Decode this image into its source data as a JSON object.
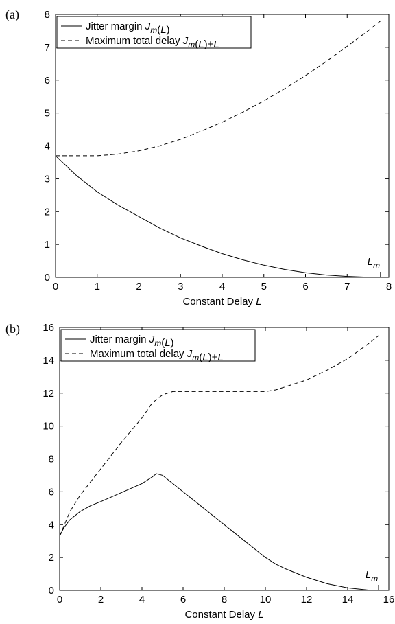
{
  "chart_data": [
    {
      "type": "line",
      "panel_label": "(a)",
      "xlabel": "Constant Delay",
      "xlabel_var": "L",
      "xlim": [
        0,
        8
      ],
      "ylim": [
        0,
        8
      ],
      "xticks": [
        "0",
        "1",
        "2",
        "3",
        "4",
        "5",
        "6",
        "7",
        "8"
      ],
      "yticks": [
        "0",
        "1",
        "2",
        "3",
        "4",
        "5",
        "6",
        "7",
        "8"
      ],
      "legend_placement": "top-left",
      "marker_label": "L",
      "marker_sub": "m",
      "marker_x": 7.8,
      "series": [
        {
          "name": "Jitter margin J_m(L)",
          "legend_text": "Jitter margin ",
          "legend_math": "J_m(L)",
          "style": "solid",
          "x": [
            0,
            0.5,
            1,
            1.5,
            2,
            2.5,
            3,
            3.5,
            4,
            4.5,
            5,
            5.5,
            6,
            6.5,
            7,
            7.5,
            7.8
          ],
          "y": [
            3.7,
            3.1,
            2.6,
            2.2,
            1.85,
            1.5,
            1.2,
            0.95,
            0.72,
            0.53,
            0.37,
            0.24,
            0.14,
            0.07,
            0.03,
            0.005,
            0
          ]
        },
        {
          "name": "Maximum total delay J_m(L)+L",
          "legend_text": "Maximum total delay ",
          "legend_math": "J_m(L)+L",
          "style": "dashed",
          "x": [
            0,
            0.5,
            1,
            1.5,
            2,
            2.5,
            3,
            3.5,
            4,
            4.5,
            5,
            5.5,
            6,
            6.5,
            7,
            7.5,
            7.8
          ],
          "y": [
            3.7,
            3.7,
            3.7,
            3.75,
            3.85,
            4.0,
            4.2,
            4.45,
            4.72,
            5.03,
            5.37,
            5.74,
            6.14,
            6.57,
            7.03,
            7.5,
            7.8
          ]
        }
      ]
    },
    {
      "type": "line",
      "panel_label": "(b)",
      "xlabel": "Constant Delay",
      "xlabel_var": "L",
      "xlim": [
        0,
        16
      ],
      "ylim": [
        0,
        16
      ],
      "xticks": [
        "0",
        "2",
        "4",
        "6",
        "8",
        "10",
        "12",
        "14",
        "16"
      ],
      "yticks": [
        "0",
        "2",
        "4",
        "6",
        "8",
        "10",
        "12",
        "14",
        "16"
      ],
      "legend_placement": "top-left",
      "marker_label": "L",
      "marker_sub": "m",
      "marker_x": 15.5,
      "series": [
        {
          "name": "Jitter margin J_m(L)",
          "legend_text": "Jitter margin ",
          "legend_math": "J_m(L)",
          "style": "solid",
          "x": [
            0,
            0.2,
            0.5,
            1,
            1.5,
            2,
            3,
            4,
            4.5,
            4.7,
            5,
            6,
            7,
            8,
            9,
            10,
            10.5,
            11,
            12,
            13,
            14,
            15,
            15.5
          ],
          "y": [
            3.3,
            3.8,
            4.3,
            4.8,
            5.15,
            5.4,
            5.95,
            6.5,
            6.9,
            7.1,
            7.0,
            6.0,
            5.0,
            4.0,
            3.0,
            2.0,
            1.6,
            1.3,
            0.8,
            0.4,
            0.15,
            0.02,
            0
          ]
        },
        {
          "name": "Maximum total delay J_m(L)+L",
          "legend_text": "Maximum total delay ",
          "legend_math": "J_m(L)+L",
          "style": "dashed",
          "x": [
            0,
            0.5,
            1,
            2,
            3,
            4,
            4.5,
            5,
            5.5,
            6,
            7,
            8,
            9,
            10,
            10.5,
            11,
            12,
            13,
            14,
            15,
            15.5
          ],
          "y": [
            3.3,
            4.8,
            5.8,
            7.4,
            9.0,
            10.5,
            11.4,
            11.9,
            12.1,
            12.1,
            12.1,
            12.1,
            12.1,
            12.1,
            12.2,
            12.4,
            12.8,
            13.4,
            14.1,
            15.0,
            15.5
          ]
        }
      ]
    }
  ]
}
